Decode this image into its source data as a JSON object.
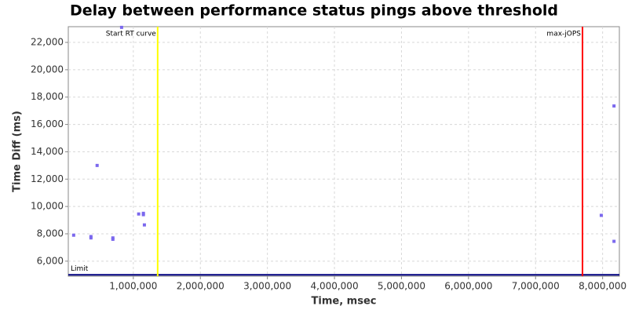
{
  "chart_data": {
    "type": "scatter",
    "title": "Delay between performance status pings above threshold",
    "x_label": "Time, msec",
    "y_label": "Time Diff (ms)",
    "x": [
      110000,
      368000,
      368000,
      460000,
      695000,
      695000,
      825000,
      1080000,
      1150000,
      1150000,
      1165000,
      7980000,
      8170000,
      8170000
    ],
    "values": [
      7900,
      7800,
      7700,
      13000,
      7700,
      7600,
      23100,
      9450,
      9500,
      9400,
      8650,
      9350,
      17350,
      7450
    ],
    "color": "#7b68ee",
    "xlim": [
      30000,
      8250000
    ],
    "ylim": [
      4900,
      23150
    ],
    "xticks": [
      {
        "value": 1000000,
        "label": "1,000,000"
      },
      {
        "value": 2000000,
        "label": "2,000,000"
      },
      {
        "value": 3000000,
        "label": "3,000,000"
      },
      {
        "value": 4000000,
        "label": "4,000,000"
      },
      {
        "value": 5000000,
        "label": "5,000,000"
      },
      {
        "value": 6000000,
        "label": "6,000,000"
      },
      {
        "value": 7000000,
        "label": "7,000,000"
      },
      {
        "value": 8000000,
        "label": "8,000,000"
      }
    ],
    "yticks": [
      {
        "value": 6000,
        "label": "6,000"
      },
      {
        "value": 8000,
        "label": "8,000"
      },
      {
        "value": 10000,
        "label": "10,000"
      },
      {
        "value": 12000,
        "label": "12,000"
      },
      {
        "value": 14000,
        "label": "14,000"
      },
      {
        "value": 16000,
        "label": "16,000"
      },
      {
        "value": 18000,
        "label": "18,000"
      },
      {
        "value": 20000,
        "label": "20,000"
      },
      {
        "value": 22000,
        "label": "22,000"
      }
    ],
    "grid": true,
    "vlines": [
      {
        "label": "Start RT curve",
        "value": 1363000,
        "color": "#ffff00"
      },
      {
        "label": "max-jOPS",
        "value": 7700000,
        "color": "#ff0000"
      }
    ],
    "hlines": [
      {
        "label": "Limit",
        "value": 5000,
        "color": "#000080"
      }
    ]
  }
}
